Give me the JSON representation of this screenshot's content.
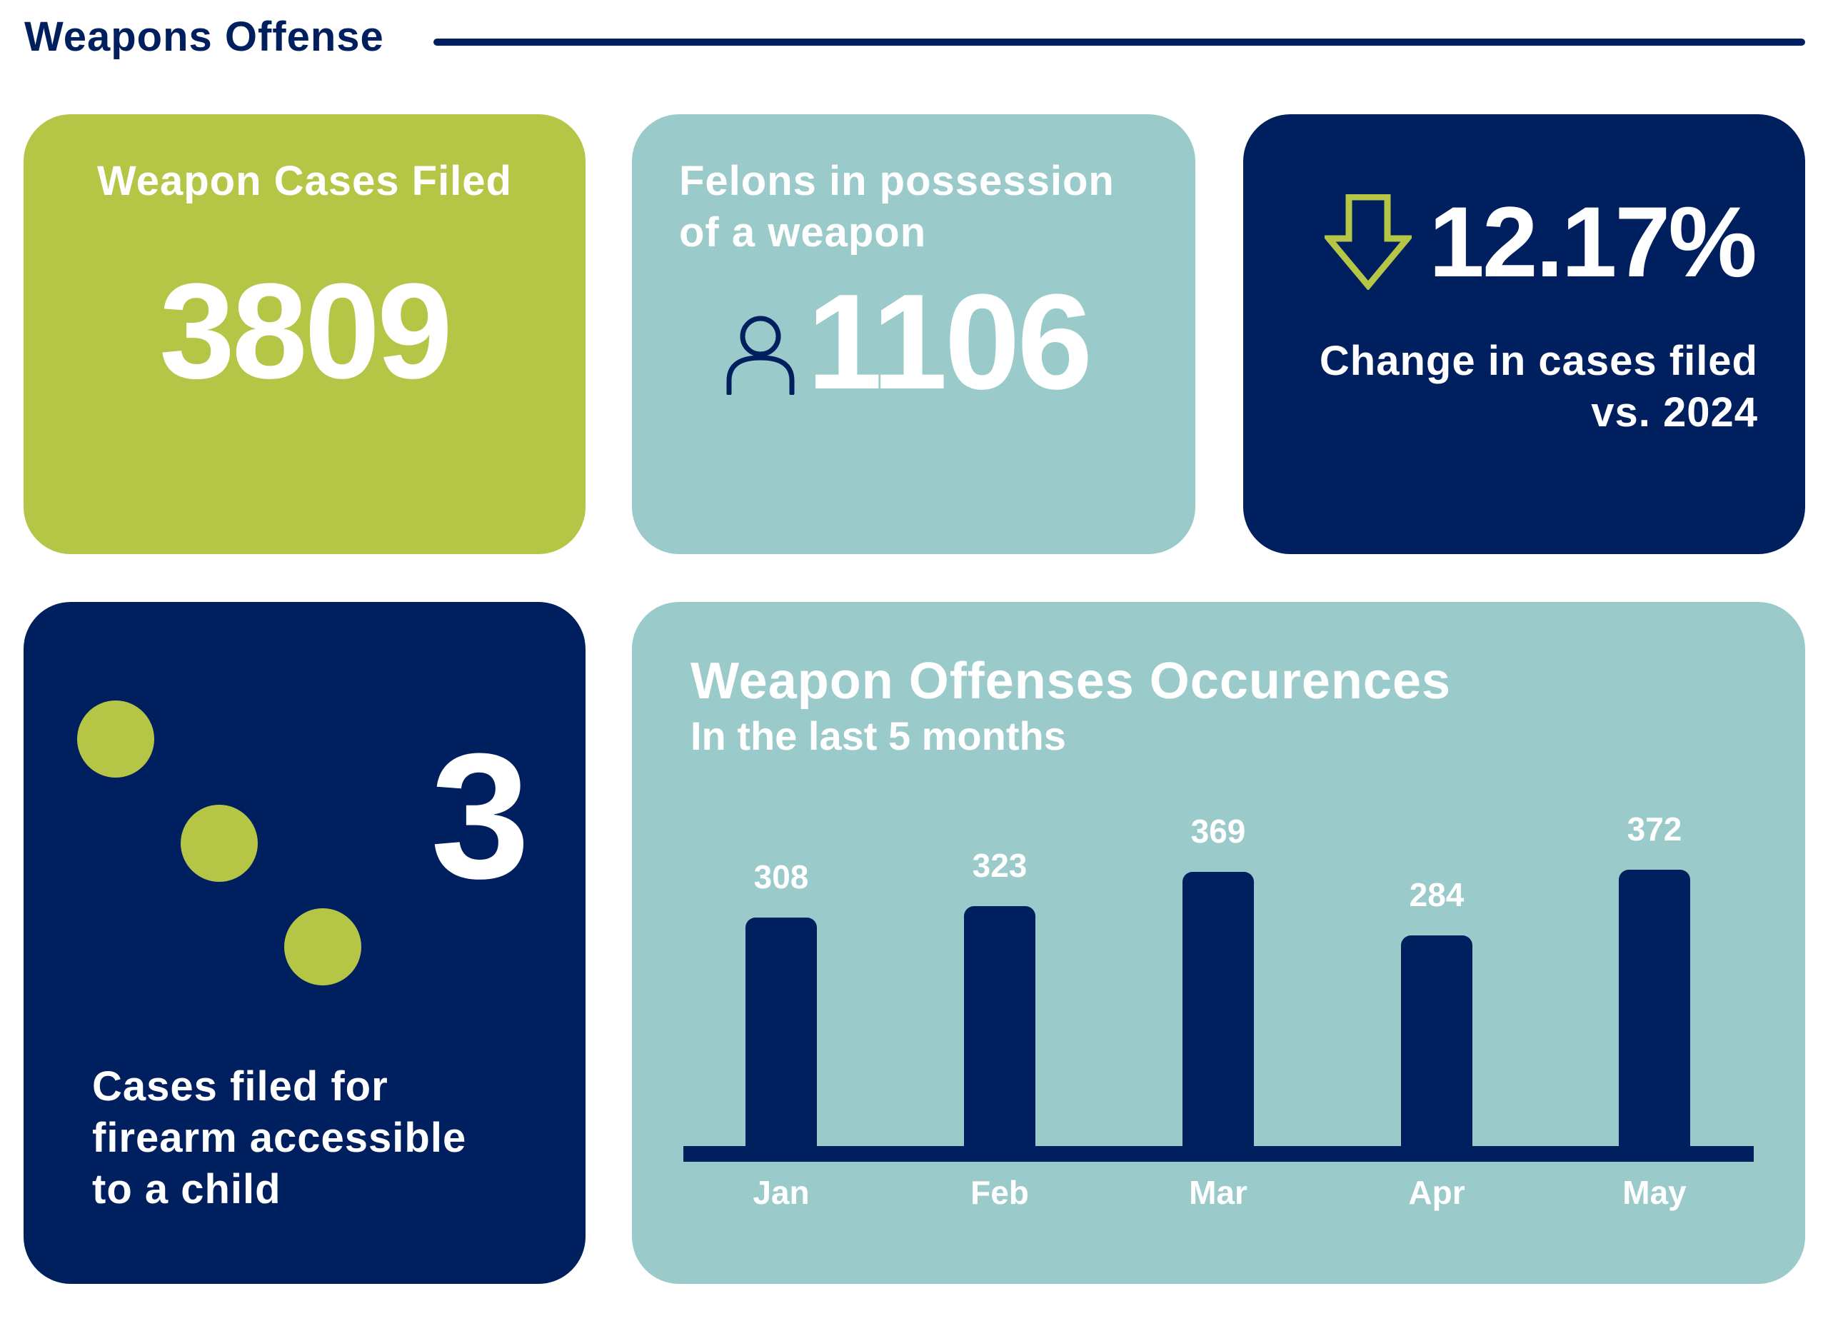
{
  "header": {
    "title": "Weapons Offense"
  },
  "colors": {
    "green": "#b5c647",
    "teal": "#9bcacb",
    "navy": "#001f5f"
  },
  "cards": {
    "cases_filed": {
      "label": "Weapon Cases Filed",
      "value": "3809"
    },
    "felons": {
      "label_line1": "Felons in possession",
      "label_line2": "of a weapon",
      "value": "1106",
      "icon": "person-icon"
    },
    "change": {
      "value": "12.17%",
      "icon": "arrow-down-icon",
      "label_line1": "Change in cases filed",
      "label_line2": "vs. 2024"
    },
    "child": {
      "value": "3",
      "label_line1": "Cases filed for",
      "label_line2": "firearm accessible",
      "label_line3": "to a child"
    }
  },
  "chart_data": {
    "type": "bar",
    "title": "Weapon Offenses Occurences",
    "subtitle": "In the last 5 months",
    "categories": [
      "Jan",
      "Feb",
      "Mar",
      "Apr",
      "May"
    ],
    "values": [
      308,
      323,
      369,
      284,
      372
    ],
    "value_labels": [
      "308",
      "323",
      "369",
      "284",
      "372"
    ],
    "ylim": [
      0,
      372
    ],
    "grid": false
  }
}
